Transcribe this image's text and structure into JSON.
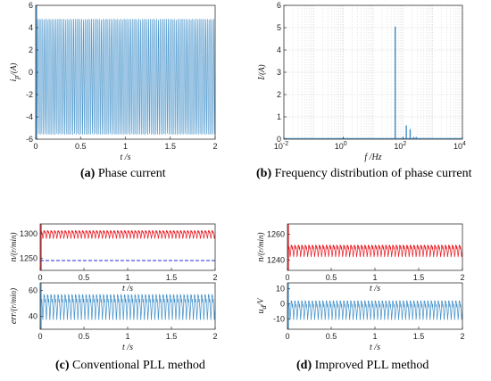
{
  "colors": {
    "blue": "#3f8fc9",
    "red": "#e8141c",
    "dash": "#1f2bd1",
    "axis": "#333333",
    "grid": "#cfcfcf"
  },
  "captions": [
    {
      "tag": "(a)",
      "text": " Phase current"
    },
    {
      "tag": "(b)",
      "text": " Frequency distribution of phase current"
    },
    {
      "tag": "(c)",
      "text": " Conventional PLL method"
    },
    {
      "tag": "(d)",
      "text": " Improved PLL method"
    }
  ],
  "chart_data": [
    {
      "id": "a",
      "type": "line",
      "xlabel": "t /s",
      "ylabel_main": "i",
      "ylabel_sub": "p",
      "ylabel_unit": "/(A)",
      "xlim": [
        0,
        2
      ],
      "ylim": [
        -6,
        6
      ],
      "xticks": [
        "0",
        "0.5",
        "1",
        "1.5",
        "2"
      ],
      "yticks": [
        "-6",
        "-4",
        "-2",
        "0",
        "2",
        "4",
        "6"
      ],
      "series": [
        {
          "color": "blue",
          "signal": {
            "mean": -0.4,
            "amp": 5.2,
            "cycles": 110
          }
        }
      ]
    },
    {
      "id": "b",
      "type": "bar",
      "xscale": "log",
      "xlabel": "f /Hz",
      "ylabel_main": "I",
      "ylabel_unit": "/(A)",
      "xlim": [
        0.01,
        10000
      ],
      "ylim": [
        0,
        6
      ],
      "xticks": [
        {
          "base": "10",
          "exp": "-2"
        },
        {
          "base": "10",
          "exp": "0"
        },
        {
          "base": "10",
          "exp": "2"
        },
        {
          "base": "10",
          "exp": "4"
        }
      ],
      "yticks": [
        "0",
        "1",
        "2",
        "3",
        "4",
        "5",
        "6"
      ],
      "grid": true,
      "x": [
        55,
        130,
        175,
        230,
        280
      ],
      "values": [
        5.05,
        0.62,
        0.45,
        0.1,
        0.1
      ]
    },
    {
      "id": "c1",
      "type": "line",
      "xlabel": "t /s",
      "ylabel_main": "n",
      "ylabel_unit": "/(r/min)",
      "xlim": [
        0,
        2
      ],
      "ylim": [
        1225,
        1320
      ],
      "xticks": [
        "0",
        "0.5",
        "1",
        "1.5",
        "2"
      ],
      "yticks": [
        {
          "label": "1250",
          "v": 1250
        },
        {
          "label": "1300",
          "v": 1300
        }
      ],
      "series": [
        {
          "color": "red",
          "signal": {
            "mean": 1300,
            "amp": 9,
            "cycles": 50
          }
        },
        {
          "color": "dash",
          "dashed": true,
          "value": 1245
        }
      ]
    },
    {
      "id": "d1",
      "type": "line",
      "xlabel": "t /s",
      "ylabel_main": "n",
      "ylabel_unit": "/(r/min)",
      "xlim": [
        0,
        2
      ],
      "ylim": [
        1232,
        1268
      ],
      "xticks": [
        "0",
        "0.5",
        "1",
        "1.5",
        "2"
      ],
      "yticks": [
        {
          "label": "1240",
          "v": 1240
        },
        {
          "label": "1260",
          "v": 1260
        }
      ],
      "series": [
        {
          "color": "red",
          "signal": {
            "mean": 1248,
            "amp": 5,
            "cycles": 50
          }
        }
      ]
    },
    {
      "id": "c2",
      "type": "line",
      "xlabel": "t /s",
      "ylabel_main": "err",
      "ylabel_unit": "/(r/min)",
      "xlim": [
        0,
        2
      ],
      "ylim": [
        30,
        66
      ],
      "xticks": [
        "0",
        "0.5",
        "1",
        "1.5",
        "2"
      ],
      "yticks": [
        {
          "label": "40",
          "v": 40
        },
        {
          "label": "60",
          "v": 60
        }
      ],
      "series": [
        {
          "color": "blue",
          "signal": {
            "mean": 49,
            "amp": 11,
            "cycles": 50
          }
        }
      ]
    },
    {
      "id": "d2",
      "type": "line",
      "xlabel": "t /s",
      "ylabel_main": "u",
      "ylabel_sub": "d",
      "ylabel_unit": "/V",
      "xlim": [
        0,
        2
      ],
      "ylim": [
        -17,
        14
      ],
      "xticks": [
        "0",
        "0.5",
        "1",
        "1.5",
        "2"
      ],
      "yticks": [
        {
          "label": "-10",
          "v": -10
        },
        {
          "label": "0",
          "v": 0
        },
        {
          "label": "10",
          "v": 10
        }
      ],
      "series": [
        {
          "color": "blue",
          "signal": {
            "mean": -3,
            "amp": 7,
            "cycles": 50
          }
        }
      ]
    }
  ]
}
